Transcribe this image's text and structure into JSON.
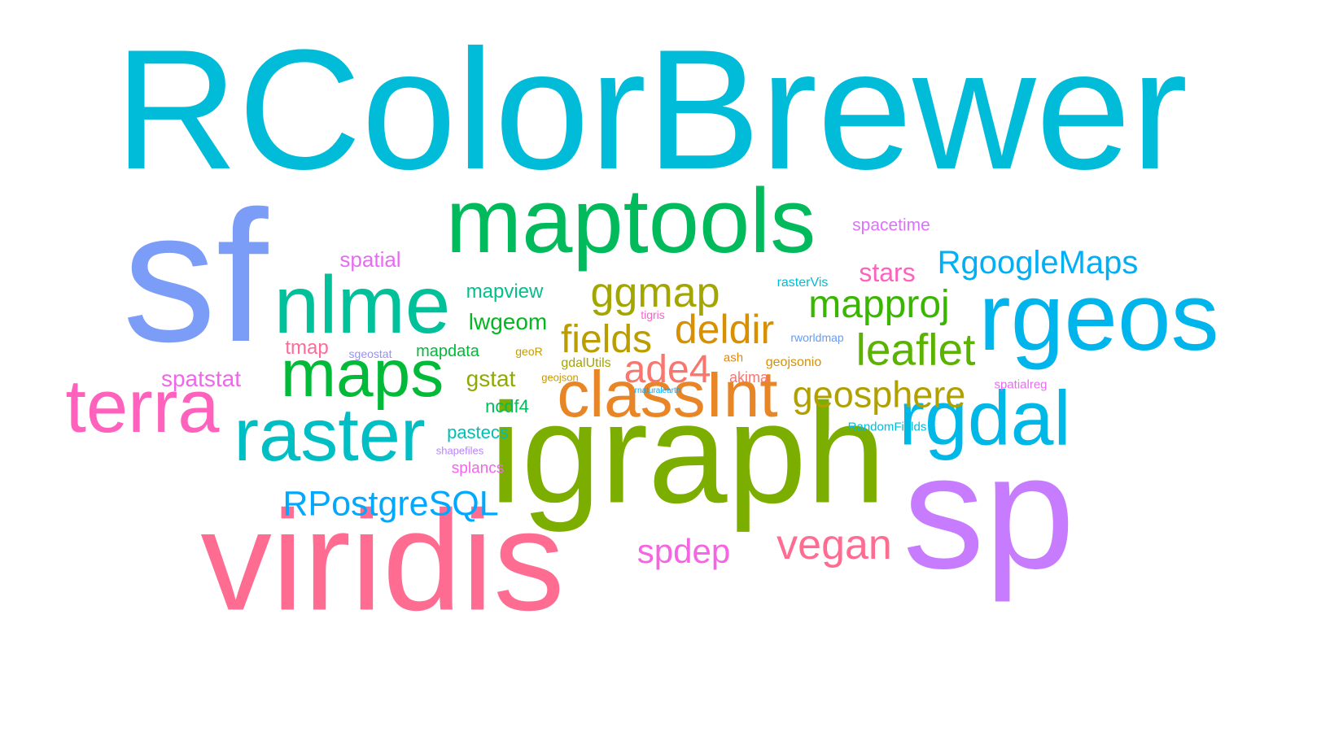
{
  "words": [
    {
      "text": "RColorBrewer",
      "color": "#00BCD8"
    },
    {
      "text": "sf",
      "color": "#7B9DF8"
    },
    {
      "text": "maptools",
      "color": "#00BA5C"
    },
    {
      "text": "rgeos",
      "color": "#00B5EC"
    },
    {
      "text": "sp",
      "color": "#C77CFF"
    },
    {
      "text": "viridis",
      "color": "#FF6C91"
    },
    {
      "text": "igraph",
      "color": "#7CAE00"
    },
    {
      "text": "nlme",
      "color": "#00C19A"
    },
    {
      "text": "raster",
      "color": "#00BFC4"
    },
    {
      "text": "terra",
      "color": "#FF62BC"
    },
    {
      "text": "rgdal",
      "color": "#00B8E7"
    },
    {
      "text": "maps",
      "color": "#00BA38"
    },
    {
      "text": "classInt",
      "color": "#E88526"
    },
    {
      "text": "ggmap",
      "color": "#A3A500"
    },
    {
      "text": "deldir",
      "color": "#D89000"
    },
    {
      "text": "mapproj",
      "color": "#39B600"
    },
    {
      "text": "leaflet",
      "color": "#5BB300"
    },
    {
      "text": "geosphere",
      "color": "#B0A000"
    },
    {
      "text": "fields",
      "color": "#BB9D00"
    },
    {
      "text": "ade4",
      "color": "#F8766D"
    },
    {
      "text": "vegan",
      "color": "#FF6C91"
    },
    {
      "text": "spdep",
      "color": "#F564E3"
    },
    {
      "text": "RPostgreSQL",
      "color": "#00A9FF"
    },
    {
      "text": "RgoogleMaps",
      "color": "#00B0F6"
    },
    {
      "text": "stars",
      "color": "#FF62BC"
    },
    {
      "text": "spatial",
      "color": "#E76BF3"
    },
    {
      "text": "spacetime",
      "color": "#DB72FB"
    },
    {
      "text": "mapview",
      "color": "#00C08B"
    },
    {
      "text": "lwgeom",
      "color": "#00B81F"
    },
    {
      "text": "gstat",
      "color": "#8EAB00"
    },
    {
      "text": "ncdf4",
      "color": "#00BD5C"
    },
    {
      "text": "pastecs",
      "color": "#00BFB2"
    },
    {
      "text": "spatstat",
      "color": "#F066EA"
    },
    {
      "text": "tmap",
      "color": "#FF6A98"
    },
    {
      "text": "splancs",
      "color": "#EF67EB"
    },
    {
      "text": "mapdata",
      "color": "#00BA38"
    },
    {
      "text": "rasterVis",
      "color": "#00BCD6"
    },
    {
      "text": "tigris",
      "color": "#FF61C9"
    },
    {
      "text": "sgeostat",
      "color": "#9590FF"
    },
    {
      "text": "rworldmap",
      "color": "#619CFF"
    },
    {
      "text": "geoR",
      "color": "#C49A00"
    },
    {
      "text": "ash",
      "color": "#E58700"
    },
    {
      "text": "geojsonio",
      "color": "#D89000"
    },
    {
      "text": "gdalUtils",
      "color": "#A3A500"
    },
    {
      "text": "akima",
      "color": "#F8766D"
    },
    {
      "text": "geojson",
      "color": "#C99800"
    },
    {
      "text": "rnaturalearth",
      "color": "#00A9FF"
    },
    {
      "text": "spatialreg",
      "color": "#E76BF3"
    },
    {
      "text": "RandomFields",
      "color": "#00BCD8"
    },
    {
      "text": "shapefiles",
      "color": "#B983FF"
    }
  ]
}
